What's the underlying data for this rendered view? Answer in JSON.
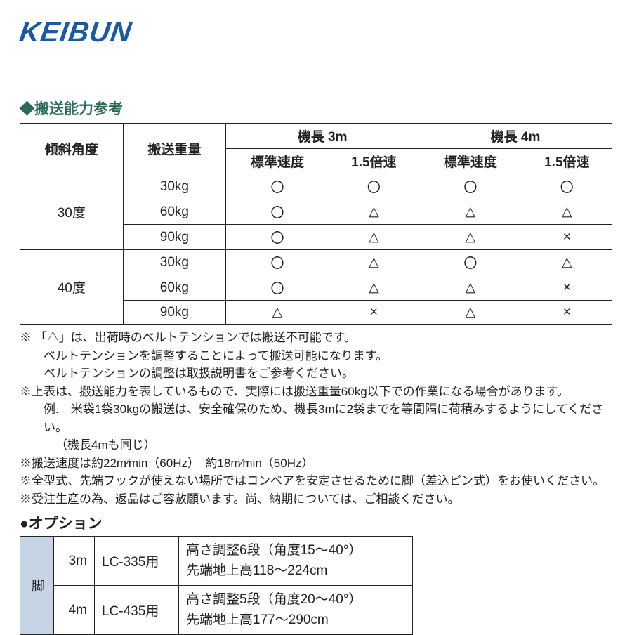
{
  "logo": "KEIBUN",
  "section1_title": "◆搬送能力参考",
  "spec_table": {
    "headers": {
      "angle": "傾斜角度",
      "weight": "搬送重量",
      "len3": "機長 3m",
      "len4": "機長 4m",
      "std": "標準速度",
      "fast": "1.5倍速"
    },
    "groups": [
      {
        "angle": "30度",
        "rows": [
          {
            "weight": "30kg",
            "c": [
              "〇",
              "〇",
              "〇",
              "〇"
            ]
          },
          {
            "weight": "60kg",
            "c": [
              "〇",
              "△",
              "△",
              "△"
            ]
          },
          {
            "weight": "90kg",
            "c": [
              "〇",
              "△",
              "△",
              "×"
            ]
          }
        ]
      },
      {
        "angle": "40度",
        "rows": [
          {
            "weight": "30kg",
            "c": [
              "〇",
              "△",
              "〇",
              "△"
            ]
          },
          {
            "weight": "60kg",
            "c": [
              "〇",
              "△",
              "△",
              "×"
            ]
          },
          {
            "weight": "90kg",
            "c": [
              "△",
              "×",
              "△",
              "×"
            ]
          }
        ]
      }
    ]
  },
  "notes": [
    "※ 「△」は、出荷時のベルトテンションでは搬送不可能です。",
    "ベルトテンションを調整することによって搬送可能になります。",
    "ベルトテンションの調整は取扱説明書をご参考ください。",
    "※上表は、搬送能力を表しているもので、実際には搬送重量60kg以下での作業になる場合があります。",
    "例.　米袋1袋30kgの搬送は、安全確保のため、機長3mに2袋までを等間隔に荷積みするようにしてください。",
    "（機長4mも同じ）",
    "※搬送速度は約22m⁄min（60Hz）　約18m⁄min（50Hz）",
    "※全型式、先端フックが使えない場所ではコンベアを安定させるために脚（差込ピン式）をお使いください。",
    "※受注生産の為、返品はご容赦願います。尚、納期については、ご相談ください。"
  ],
  "option_title": "●オプション",
  "option_table": {
    "leg_label": "脚",
    "rows": [
      {
        "len": "3m",
        "model": "LC-335用",
        "desc1": "高さ調整6段（角度15～40°）",
        "desc2": "先端地上高118～224cm"
      },
      {
        "len": "4m",
        "model": "LC-435用",
        "desc1": "高さ調整5段（角度20～40°）",
        "desc2": "先端地上高177～290cm"
      }
    ]
  }
}
